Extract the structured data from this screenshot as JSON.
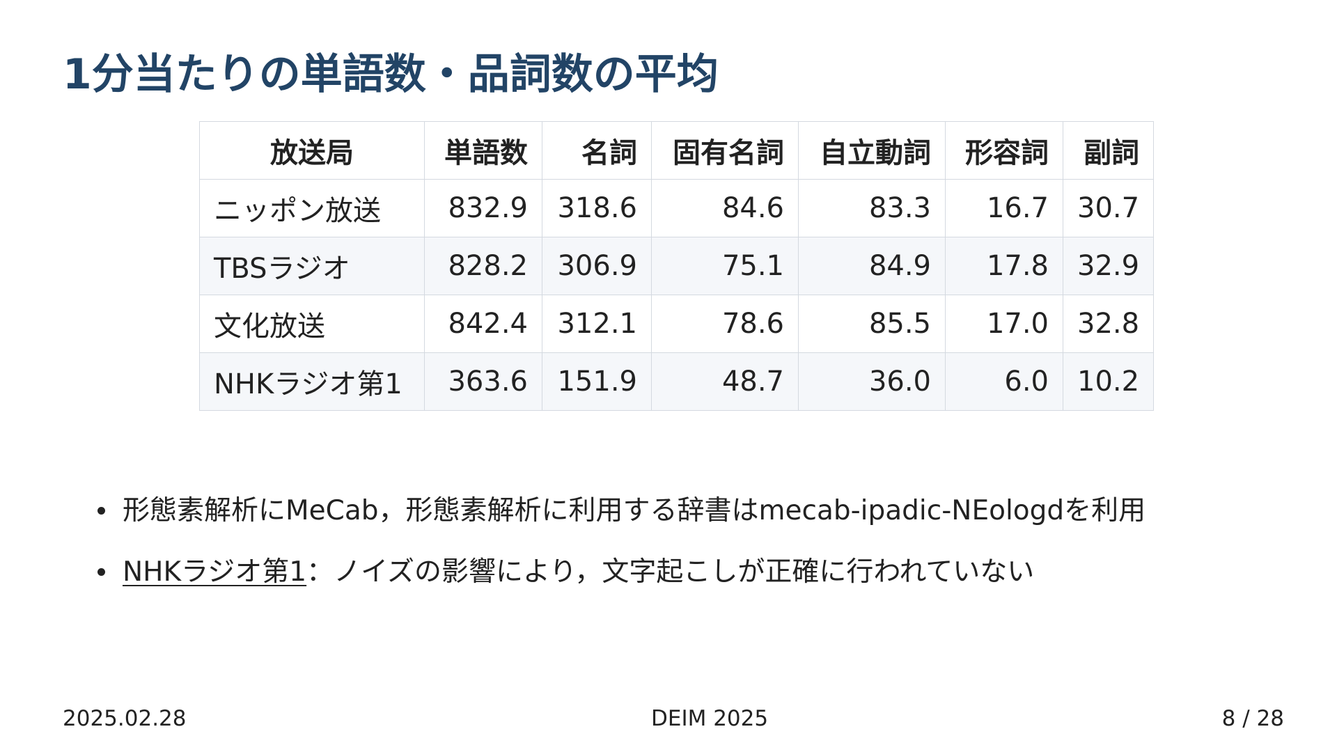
{
  "slide": {
    "title": "1分当たりの単語数・品詞数の平均"
  },
  "table": {
    "headers": [
      "放送局",
      "単語数",
      "名詞",
      "固有名詞",
      "自立動詞",
      "形容詞",
      "副詞"
    ],
    "rows": [
      [
        "ニッポン放送",
        "832.9",
        "318.6",
        "84.6",
        "83.3",
        "16.7",
        "30.7"
      ],
      [
        "TBSラジオ",
        "828.2",
        "306.9",
        "75.1",
        "84.9",
        "17.8",
        "32.9"
      ],
      [
        "文化放送",
        "842.4",
        "312.1",
        "78.6",
        "85.5",
        "17.0",
        "32.8"
      ],
      [
        "NHKラジオ第1",
        "363.6",
        "151.9",
        "48.7",
        "36.0",
        "6.0",
        "10.2"
      ]
    ]
  },
  "notes": {
    "item1": "形態素解析にMeCab，形態素解析に利用する辞書はmecab-ipadic-NEologdを利用",
    "item2_link": "NHKラジオ第1",
    "item2_rest": "：ノイズの影響により，文字起こしが正確に行われていない"
  },
  "footer": {
    "date": "2025.02.28",
    "conference": "DEIM 2025",
    "page": "8 / 28"
  }
}
